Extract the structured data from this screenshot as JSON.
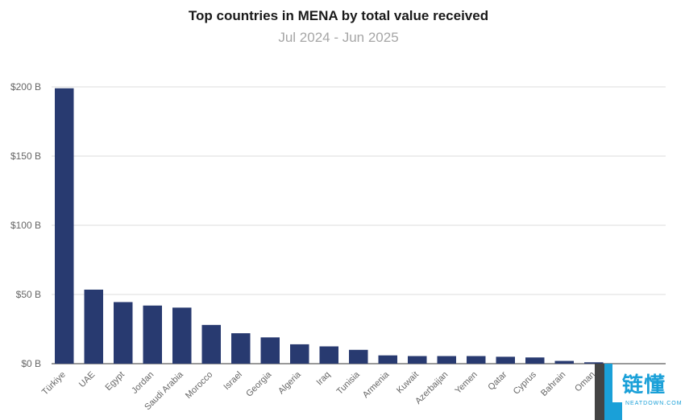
{
  "chart_data": {
    "type": "bar",
    "title": "Top countries in MENA by total value received",
    "subtitle": "Jul 2024 - Jun 2025",
    "categories": [
      "Türkiye",
      "UAE",
      "Egypt",
      "Jordan",
      "Saudi Arabia",
      "Morocco",
      "Israel",
      "Georgia",
      "Algeria",
      "Iraq",
      "Tunisia",
      "Armenia",
      "Kuwait",
      "Azerbaijan",
      "Yemen",
      "Qatar",
      "Cyprus",
      "Bahrain",
      "Oman"
    ],
    "values": [
      199,
      53.5,
      44.5,
      42,
      40.5,
      28,
      22,
      19,
      14,
      12.5,
      10,
      6,
      5.5,
      5.5,
      5.5,
      5,
      4.5,
      2,
      1
    ],
    "yticks": [
      "$0 B",
      "$50 B",
      "$100 B",
      "$150 B",
      "$200 B"
    ],
    "ytick_values": [
      0,
      50,
      100,
      150,
      200
    ],
    "ylim": [
      0,
      200
    ],
    "xlabel": "",
    "ylabel": "",
    "grid": true,
    "bar_color": "#283a70"
  },
  "watermark": {
    "text": "链懂",
    "sub": "NEATDOWN.COM"
  }
}
